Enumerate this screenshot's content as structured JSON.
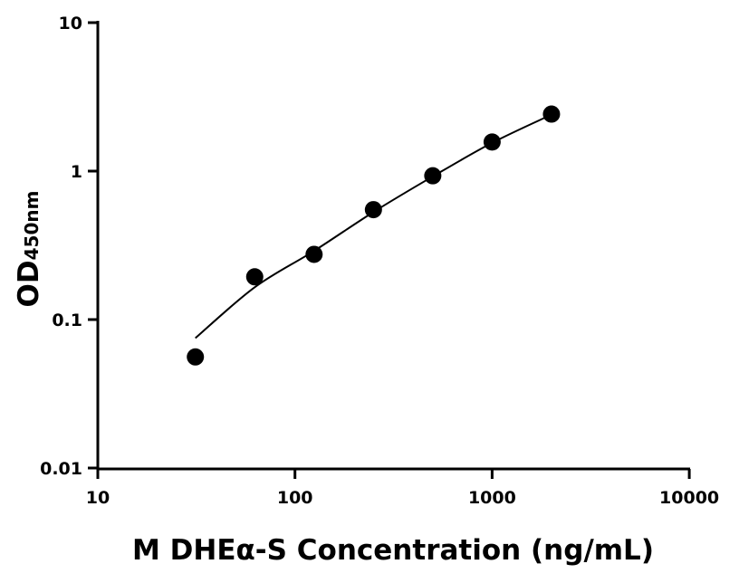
{
  "chart_data": {
    "type": "scatter",
    "title": "",
    "xlabel": "M DHEα-S Concentration (ng/mL)",
    "ylabel": "OD",
    "ylabel_subscript": "450nm",
    "xscale": "log",
    "yscale": "log",
    "xlim": [
      10,
      10000
    ],
    "ylim": [
      0.01,
      10
    ],
    "xticks": [
      10,
      100,
      1000,
      10000
    ],
    "xtick_labels": [
      "10",
      "100",
      "1000",
      "10000"
    ],
    "yticks": [
      0.01,
      0.1,
      1,
      10
    ],
    "ytick_labels": [
      "0.01",
      "0.1",
      "1",
      "10"
    ],
    "grid": false,
    "points": {
      "x": [
        31.25,
        62.5,
        125,
        250,
        500,
        1000,
        2000
      ],
      "y": [
        0.056,
        0.194,
        0.275,
        0.55,
        0.93,
        1.57,
        2.42
      ]
    },
    "fit_curve": {
      "x": [
        31.25,
        62.5,
        125,
        250,
        500,
        1000,
        2000
      ],
      "y": [
        0.075,
        0.165,
        0.29,
        0.53,
        0.92,
        1.55,
        2.4
      ]
    },
    "colors": {
      "points": "#000000",
      "curve": "#000000",
      "axes": "#000000"
    }
  }
}
